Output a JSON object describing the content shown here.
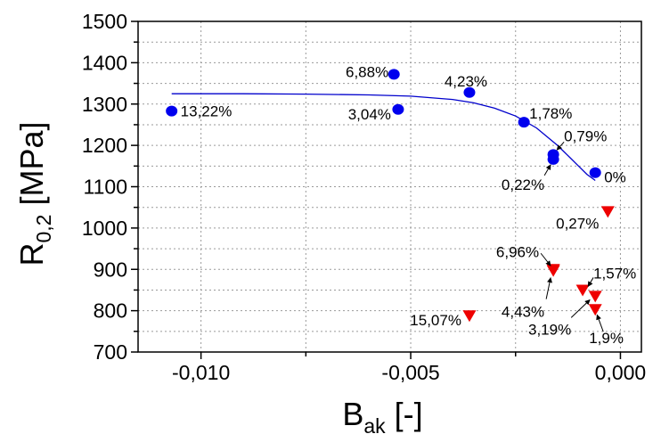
{
  "chart_data": {
    "type": "scatter",
    "xlabel": {
      "main": "B",
      "sub": "ak",
      "unit": " [-]"
    },
    "ylabel": {
      "main": "R",
      "sub": "0,2",
      "unit": " [MPa]"
    },
    "xlim": [
      -0.0115,
      0.0005
    ],
    "ylim": [
      700,
      1500
    ],
    "x_ticks": [
      -0.01,
      -0.005,
      0.0
    ],
    "x_tick_labels": [
      "-0,010",
      "-0,005",
      "0,000"
    ],
    "y_ticks": [
      700,
      800,
      900,
      1000,
      1100,
      1200,
      1300,
      1400,
      1500
    ],
    "y_tick_labels": [
      "700",
      "800",
      "900",
      "1000",
      "1100",
      "1200",
      "1300",
      "1400",
      "1500"
    ],
    "grid": true,
    "colors": {
      "series1": "#0000ee",
      "series2": "#ee0000",
      "fit": "#0000cc"
    },
    "series": [
      {
        "marker": "circle",
        "points": [
          {
            "x": -0.0107,
            "y": 1283,
            "label": "13,22%"
          },
          {
            "x": -0.0054,
            "y": 1372,
            "label": "6,88%"
          },
          {
            "x": -0.0053,
            "y": 1287,
            "label": "3,04%"
          },
          {
            "x": -0.0036,
            "y": 1328,
            "label": "4,23%"
          },
          {
            "x": -0.0023,
            "y": 1256,
            "label": "1,78%"
          },
          {
            "x": -0.0016,
            "y": 1178,
            "label": "0,79%"
          },
          {
            "x": -0.0016,
            "y": 1166,
            "label": "0,22%"
          },
          {
            "x": -0.0006,
            "y": 1134,
            "label": "0%"
          }
        ]
      },
      {
        "marker": "triangle-down",
        "points": [
          {
            "x": -0.0003,
            "y": 1040,
            "label": "0,27%"
          },
          {
            "x": -0.0016,
            "y": 900,
            "label": "6,96%"
          },
          {
            "x": -0.0016,
            "y": 897,
            "label": "4,43%"
          },
          {
            "x": -0.0009,
            "y": 850,
            "label": "1,57%"
          },
          {
            "x": -0.0006,
            "y": 835,
            "label": "3,19%"
          },
          {
            "x": -0.0006,
            "y": 803,
            "label": "1,9%"
          },
          {
            "x": -0.0036,
            "y": 788,
            "label": "15,07%"
          }
        ]
      }
    ],
    "fit_curve": {
      "x": [
        -0.0107,
        -0.009,
        -0.0075,
        -0.006,
        -0.005,
        -0.004,
        -0.0035,
        -0.003,
        -0.0025,
        -0.002,
        -0.0015,
        -0.0012,
        -0.001,
        -0.0008,
        -0.0006
      ],
      "y": [
        1325,
        1325,
        1324,
        1322,
        1319,
        1311,
        1303,
        1290,
        1271,
        1242,
        1200,
        1170,
        1150,
        1130,
        1115
      ]
    }
  }
}
